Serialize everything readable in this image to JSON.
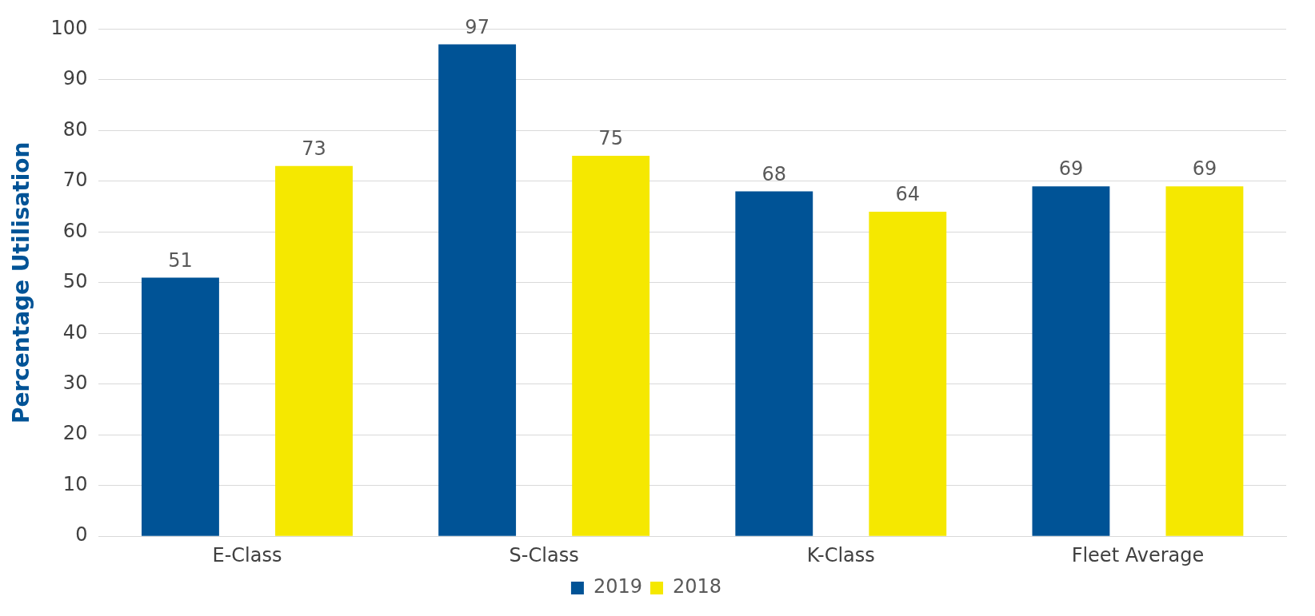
{
  "chart_data": {
    "type": "bar",
    "ylabel": "Percentage Utilisation",
    "categories": [
      "E-Class",
      "S-Class",
      "K-Class",
      "Fleet Average"
    ],
    "series": [
      {
        "name": "2019",
        "color": "#005396",
        "values": [
          51,
          97,
          68,
          69
        ]
      },
      {
        "name": "2018",
        "color": "#f5e800",
        "values": [
          73,
          75,
          64,
          69
        ]
      }
    ],
    "ylim": [
      0,
      100
    ],
    "yticks": [
      0,
      10,
      20,
      30,
      40,
      50,
      60,
      70,
      80,
      90,
      100
    ],
    "grid": "y",
    "legend": "bottom",
    "data_labels": true
  }
}
